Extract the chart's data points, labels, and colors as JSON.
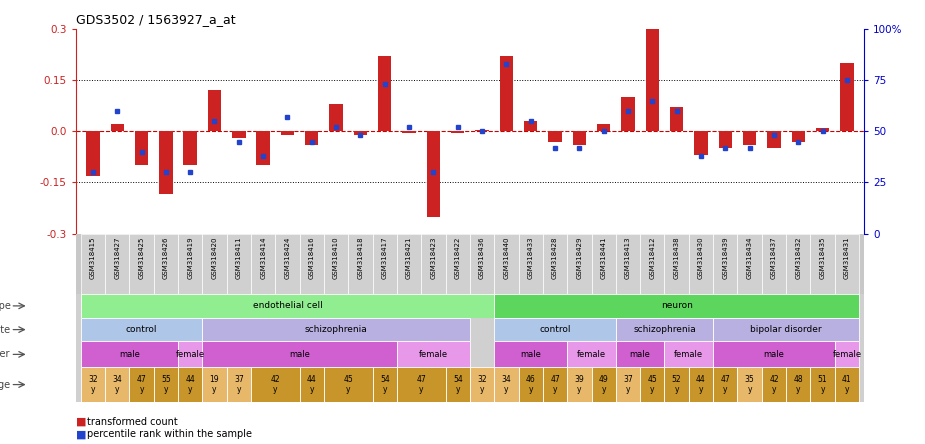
{
  "title": "GDS3502 / 1563927_a_at",
  "samples": [
    "GSM318415",
    "GSM318427",
    "GSM318425",
    "GSM318426",
    "GSM318419",
    "GSM318420",
    "GSM318411",
    "GSM318414",
    "GSM318424",
    "GSM318416",
    "GSM318410",
    "GSM318418",
    "GSM318417",
    "GSM318421",
    "GSM318423",
    "GSM318422",
    "GSM318436",
    "GSM318440",
    "GSM318433",
    "GSM318428",
    "GSM318429",
    "GSM318441",
    "GSM318413",
    "GSM318412",
    "GSM318438",
    "GSM318430",
    "GSM318439",
    "GSM318434",
    "GSM318437",
    "GSM318432",
    "GSM318435",
    "GSM318431"
  ],
  "red_values": [
    -0.13,
    0.02,
    -0.1,
    -0.185,
    -0.1,
    0.12,
    -0.02,
    -0.1,
    -0.01,
    -0.04,
    0.08,
    -0.01,
    0.22,
    -0.005,
    -0.25,
    -0.005,
    0.005,
    0.22,
    0.03,
    -0.03,
    -0.04,
    0.02,
    0.1,
    0.3,
    0.07,
    -0.07,
    -0.05,
    -0.04,
    -0.05,
    -0.03,
    0.01,
    0.2
  ],
  "blue_values": [
    30,
    60,
    40,
    30,
    30,
    55,
    45,
    38,
    57,
    45,
    52,
    48,
    73,
    52,
    30,
    52,
    50,
    83,
    55,
    42,
    42,
    50,
    60,
    65,
    60,
    38,
    42,
    42,
    48,
    45,
    50,
    75
  ],
  "cell_type_groups": [
    {
      "label": "endothelial cell",
      "start": 0,
      "end": 16,
      "color": "#90ee90"
    },
    {
      "label": "neuron",
      "start": 17,
      "end": 31,
      "color": "#5cd65c"
    }
  ],
  "disease_state_groups": [
    {
      "label": "control",
      "start": 0,
      "end": 4,
      "color": "#aec6e8"
    },
    {
      "label": "schizophrenia",
      "start": 5,
      "end": 15,
      "color": "#b8b0e0"
    },
    {
      "label": "control",
      "start": 17,
      "end": 21,
      "color": "#aec6e8"
    },
    {
      "label": "schizophrenia",
      "start": 22,
      "end": 25,
      "color": "#b8b0e0"
    },
    {
      "label": "bipolar disorder",
      "start": 26,
      "end": 31,
      "color": "#b8b0e0"
    }
  ],
  "gender_groups": [
    {
      "label": "male",
      "start": 0,
      "end": 3,
      "color": "#d060d0"
    },
    {
      "label": "female",
      "start": 4,
      "end": 4,
      "color": "#e898e8"
    },
    {
      "label": "male",
      "start": 5,
      "end": 12,
      "color": "#d060d0"
    },
    {
      "label": "female",
      "start": 13,
      "end": 15,
      "color": "#e898e8"
    },
    {
      "label": "male",
      "start": 17,
      "end": 19,
      "color": "#d060d0"
    },
    {
      "label": "female",
      "start": 20,
      "end": 21,
      "color": "#e898e8"
    },
    {
      "label": "male",
      "start": 22,
      "end": 23,
      "color": "#d060d0"
    },
    {
      "label": "female",
      "start": 24,
      "end": 25,
      "color": "#e898e8"
    },
    {
      "label": "male",
      "start": 26,
      "end": 30,
      "color": "#d060d0"
    },
    {
      "label": "female",
      "start": 31,
      "end": 31,
      "color": "#e898e8"
    }
  ],
  "age_data": [
    {
      "label": "32\ny",
      "start": 0,
      "end": 0,
      "color": "#e8b86a"
    },
    {
      "label": "34\ny",
      "start": 1,
      "end": 1,
      "color": "#e8b86a"
    },
    {
      "label": "47\ny",
      "start": 2,
      "end": 2,
      "color": "#c8952a"
    },
    {
      "label": "55\ny",
      "start": 3,
      "end": 3,
      "color": "#c8952a"
    },
    {
      "label": "44\ny",
      "start": 4,
      "end": 4,
      "color": "#c8952a"
    },
    {
      "label": "19\ny",
      "start": 5,
      "end": 5,
      "color": "#e8b86a"
    },
    {
      "label": "37\ny",
      "start": 6,
      "end": 6,
      "color": "#e8b86a"
    },
    {
      "label": "42\ny",
      "start": 7,
      "end": 8,
      "color": "#c8952a"
    },
    {
      "label": "44\ny",
      "start": 9,
      "end": 9,
      "color": "#c8952a"
    },
    {
      "label": "45\ny",
      "start": 10,
      "end": 11,
      "color": "#c8952a"
    },
    {
      "label": "54\ny",
      "start": 12,
      "end": 12,
      "color": "#c8952a"
    },
    {
      "label": "47\ny",
      "start": 13,
      "end": 14,
      "color": "#c8952a"
    },
    {
      "label": "54\ny",
      "start": 15,
      "end": 15,
      "color": "#c8952a"
    },
    {
      "label": "32\ny",
      "start": 16,
      "end": 16,
      "color": "#e8b86a"
    },
    {
      "label": "34\ny",
      "start": 17,
      "end": 17,
      "color": "#e8b86a"
    },
    {
      "label": "46\ny",
      "start": 18,
      "end": 18,
      "color": "#c8952a"
    },
    {
      "label": "47\ny",
      "start": 19,
      "end": 19,
      "color": "#c8952a"
    },
    {
      "label": "39\ny",
      "start": 20,
      "end": 20,
      "color": "#e8b86a"
    },
    {
      "label": "49\ny",
      "start": 21,
      "end": 21,
      "color": "#c8952a"
    },
    {
      "label": "37\ny",
      "start": 22,
      "end": 22,
      "color": "#e8b86a"
    },
    {
      "label": "45\ny",
      "start": 23,
      "end": 23,
      "color": "#c8952a"
    },
    {
      "label": "52\ny",
      "start": 24,
      "end": 24,
      "color": "#c8952a"
    },
    {
      "label": "44\ny",
      "start": 25,
      "end": 25,
      "color": "#c8952a"
    },
    {
      "label": "47\ny",
      "start": 26,
      "end": 26,
      "color": "#c8952a"
    },
    {
      "label": "35\ny",
      "start": 27,
      "end": 27,
      "color": "#e8b86a"
    },
    {
      "label": "42\ny",
      "start": 28,
      "end": 28,
      "color": "#c8952a"
    },
    {
      "label": "48\ny",
      "start": 29,
      "end": 29,
      "color": "#c8952a"
    },
    {
      "label": "51\ny",
      "start": 30,
      "end": 30,
      "color": "#c8952a"
    },
    {
      "label": "41\ny",
      "start": 31,
      "end": 31,
      "color": "#c8952a"
    }
  ],
  "yticks_left": [
    -0.3,
    -0.15,
    0.0,
    0.15,
    0.3
  ],
  "yticks_right": [
    0,
    25,
    50,
    75,
    100
  ],
  "bar_color": "#cc2222",
  "dot_color": "#2244cc",
  "left_axis_color": "#cc2222",
  "right_axis_color": "#0000cc",
  "background_color": "#ffffff",
  "tick_bg_color": "#c8c8c8"
}
